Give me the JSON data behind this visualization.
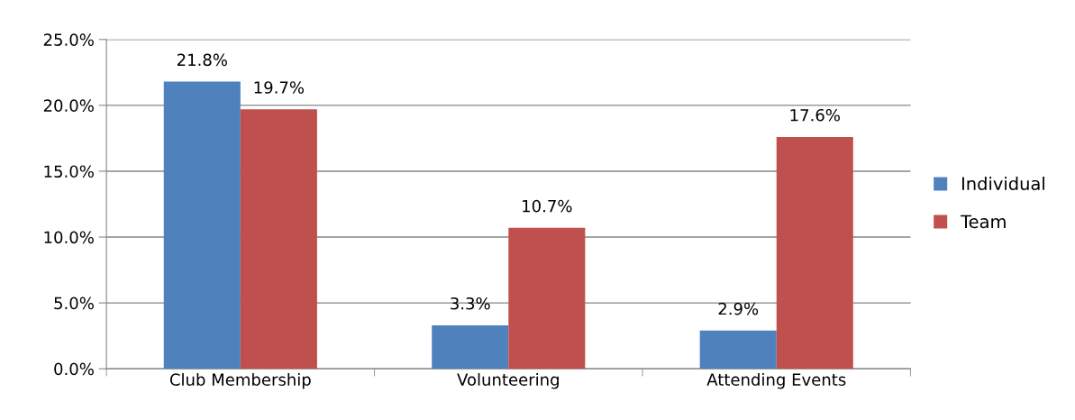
{
  "chart_data": {
    "type": "bar",
    "categories": [
      "Club Membership",
      "Volunteering",
      "Attending Events"
    ],
    "series": [
      {
        "name": "Individual",
        "color": "#4f81bd",
        "values": [
          21.8,
          3.3,
          2.9
        ],
        "value_labels": [
          "21.8%",
          "3.3%",
          "2.9%"
        ]
      },
      {
        "name": "Team",
        "color": "#c0504d",
        "values": [
          19.7,
          10.7,
          17.6
        ],
        "value_labels": [
          "19.7%",
          "10.7%",
          "17.6%"
        ]
      }
    ],
    "ylim": [
      0,
      25
    ],
    "yticks": [
      {
        "value": 0,
        "label": "0.0%"
      },
      {
        "value": 5,
        "label": "5.0%"
      },
      {
        "value": 10,
        "label": "10.0%"
      },
      {
        "value": 15,
        "label": "15.0%"
      },
      {
        "value": 20,
        "label": "20.0%"
      },
      {
        "value": 25,
        "label": "25.0%"
      }
    ],
    "grid": "y",
    "legend": "right"
  }
}
